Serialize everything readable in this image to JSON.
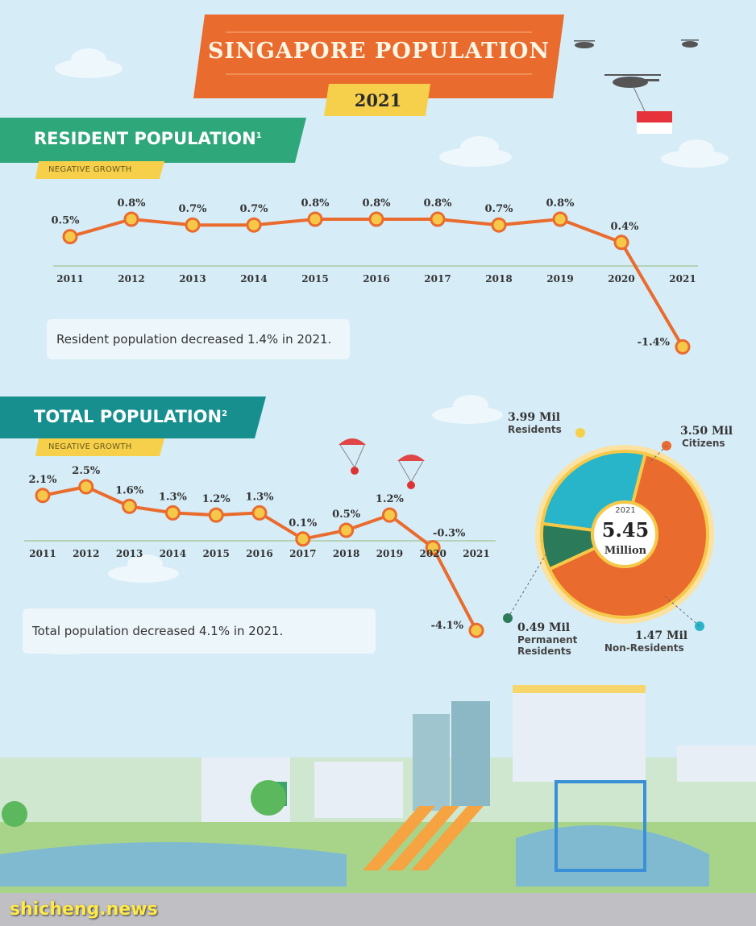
{
  "header": {
    "title": "SINGAPORE POPULATION",
    "year": "2021"
  },
  "resident_section": {
    "label": "RESIDENT POPULATION",
    "footnote": "1",
    "badge": "NEGATIVE GROWTH",
    "note": "Resident population decreased 1.4% in 2021."
  },
  "total_section": {
    "label": "TOTAL POPULATION",
    "footnote": "2",
    "badge": "NEGATIVE GROWTH",
    "note": "Total population decreased 4.1% in 2021."
  },
  "donut": {
    "year": "2021",
    "total": "5.45",
    "unit": "Million",
    "residents": {
      "value": "3.99 Mil",
      "name": "Residents"
    },
    "citizens": {
      "value": "3.50 Mil",
      "name": "Citizens"
    },
    "pr": {
      "value": "0.49 Mil",
      "name1": "Permanent",
      "name2": "Residents"
    },
    "nonres": {
      "value": "1.47 Mil",
      "name": "Non-Residents"
    }
  },
  "watermark": "shicheng.news",
  "colors": {
    "orange": "#ea6b2e",
    "yellow": "#f6c84a",
    "teal": "#29b5c9",
    "green": "#2b7a5a",
    "banner_green": "#2ea77a"
  },
  "chart_data": [
    {
      "type": "line",
      "title": "RESIDENT POPULATION",
      "categories": [
        "2011",
        "2012",
        "2013",
        "2014",
        "2015",
        "2016",
        "2017",
        "2018",
        "2019",
        "2020",
        "2021"
      ],
      "values": [
        0.5,
        0.8,
        0.7,
        0.7,
        0.8,
        0.8,
        0.8,
        0.7,
        0.8,
        0.4,
        -1.4
      ],
      "labels": [
        "0.5%",
        "0.8%",
        "0.7%",
        "0.7%",
        "0.8%",
        "0.8%",
        "0.8%",
        "0.7%",
        "0.8%",
        "0.4%",
        "-1.4%"
      ]
    },
    {
      "type": "line",
      "title": "TOTAL POPULATION",
      "categories": [
        "2011",
        "2012",
        "2013",
        "2014",
        "2015",
        "2016",
        "2017",
        "2018",
        "2019",
        "2020",
        "2021"
      ],
      "values": [
        2.1,
        2.5,
        1.6,
        1.3,
        1.2,
        1.3,
        0.1,
        0.5,
        1.2,
        -0.3,
        -4.1
      ],
      "labels": [
        "2.1%",
        "2.5%",
        "1.6%",
        "1.3%",
        "1.2%",
        "1.3%",
        "0.1%",
        "0.5%",
        "1.2%",
        "-0.3%",
        "-4.1%"
      ]
    },
    {
      "type": "pie",
      "categories": [
        "Citizens",
        "Permanent Residents",
        "Non-Residents"
      ],
      "values": [
        3.5,
        0.49,
        1.47
      ]
    }
  ]
}
